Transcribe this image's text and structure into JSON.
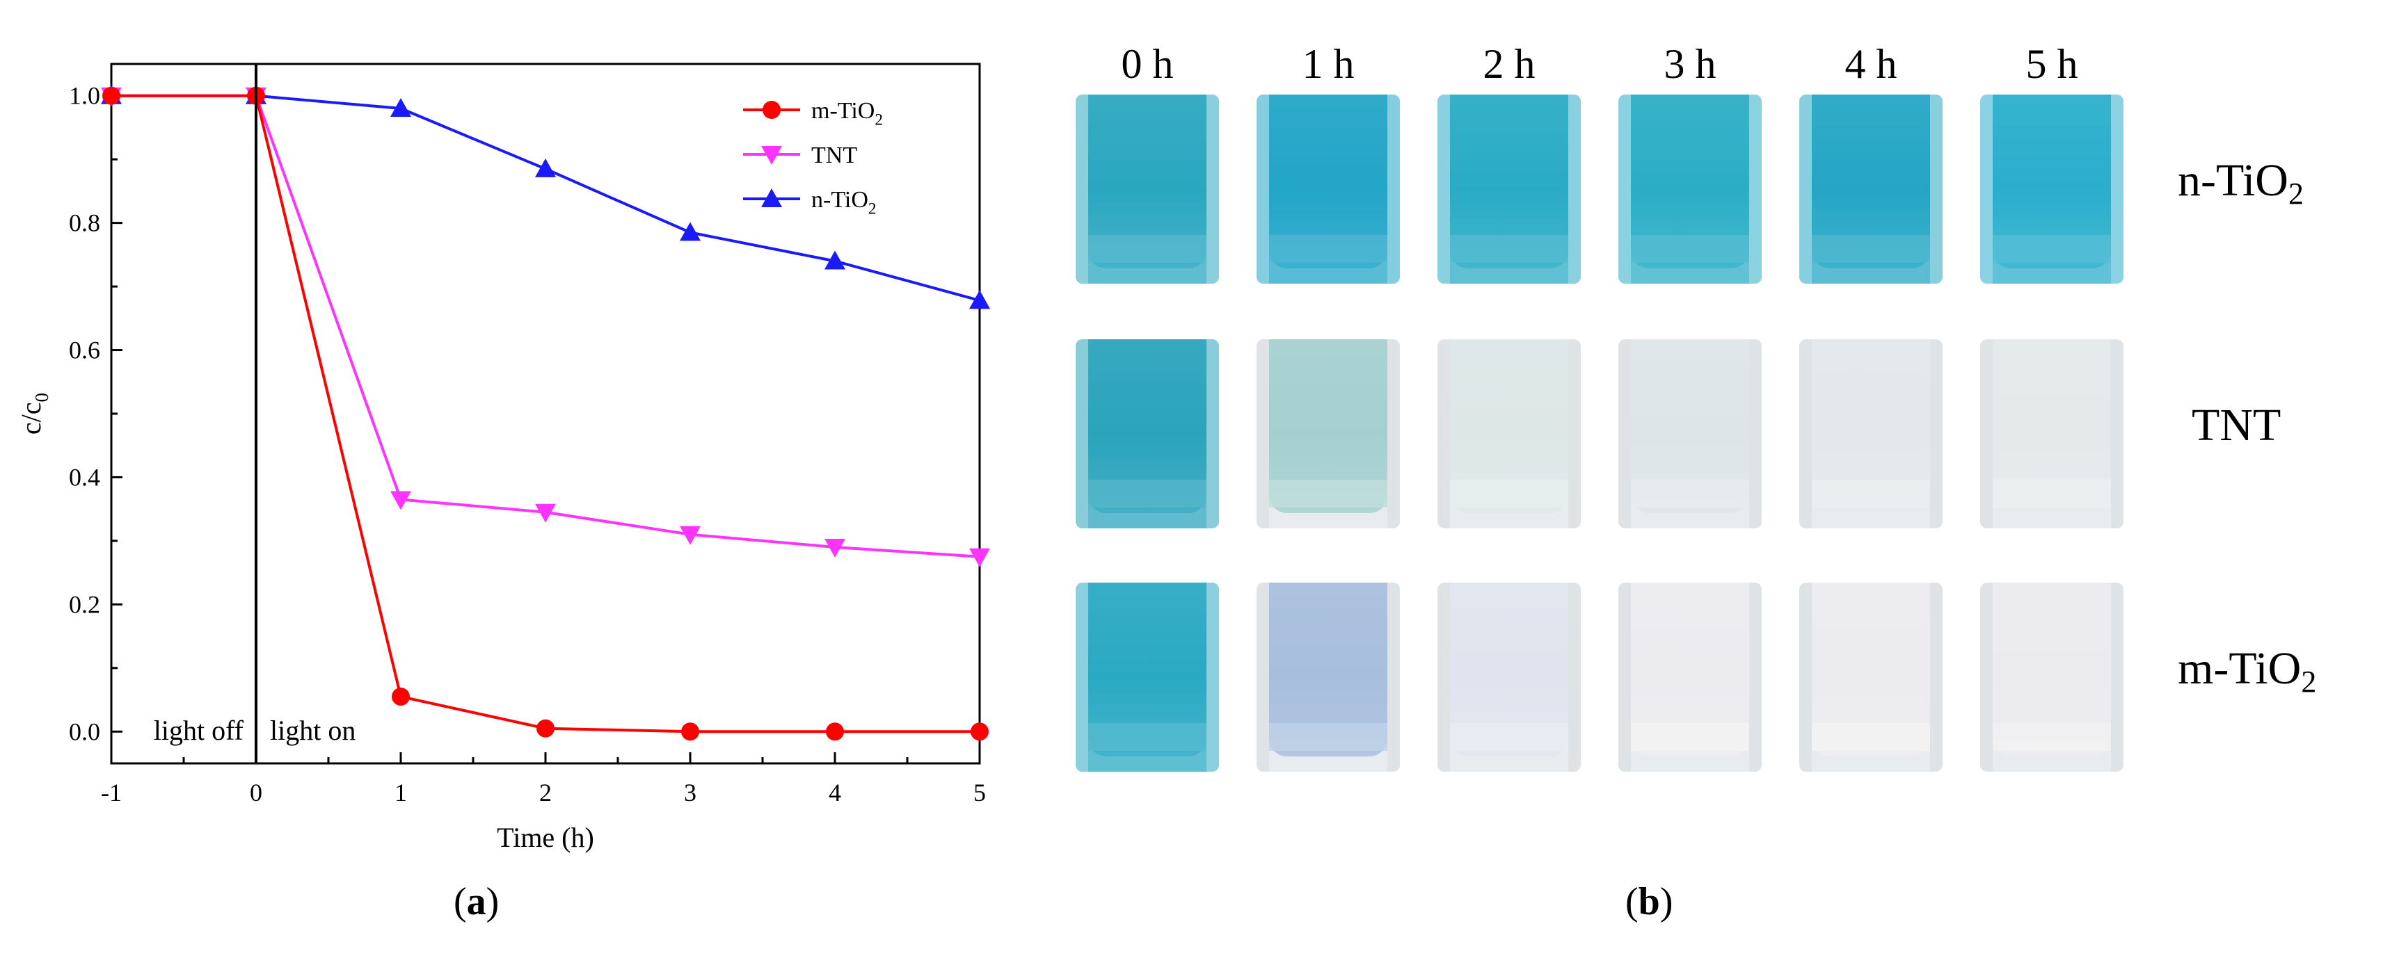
{
  "chart_data": {
    "type": "line",
    "xlabel": "Time (h)",
    "ylabel": "c/c",
    "ylabel_sub": "0",
    "xlim": [
      -1,
      5
    ],
    "ylim": [
      -0.05,
      1.05
    ],
    "xticks": [
      -1,
      0,
      1,
      2,
      3,
      4,
      5
    ],
    "yticks": [
      0.0,
      0.2,
      0.4,
      0.6,
      0.8,
      1.0
    ],
    "xtick_labels": [
      "-1",
      "0",
      "1",
      "2",
      "3",
      "4",
      "5"
    ],
    "ytick_labels": [
      "0.0",
      "0.2",
      "0.4",
      "0.6",
      "0.8",
      "1.0"
    ],
    "grid": false,
    "legend_position": "top-right",
    "vline_x": 0,
    "annotations": [
      "light off",
      "light on"
    ],
    "x": [
      -1,
      0,
      1,
      2,
      3,
      4,
      5
    ],
    "series": [
      {
        "name": "m-TiO",
        "name_sub": "2",
        "marker": "circle",
        "color": "#ff0000",
        "values": [
          1.0,
          1.0,
          0.055,
          0.005,
          0.0,
          0.0,
          0.0
        ]
      },
      {
        "name": "TNT",
        "name_sub": "",
        "marker": "triangle-down",
        "color": "#ff33ff",
        "values": [
          1.0,
          1.0,
          0.365,
          0.345,
          0.31,
          0.29,
          0.275
        ]
      },
      {
        "name": "n-TiO",
        "name_sub": "2",
        "marker": "triangle-up",
        "color": "#1a1aff",
        "values": [
          1.0,
          1.0,
          0.98,
          0.885,
          0.785,
          0.74,
          0.678
        ]
      }
    ]
  },
  "panels": {
    "a_label": "a",
    "b_label": "b",
    "paren_open": "(",
    "paren_close": ")"
  },
  "photos": {
    "time_labels": [
      "0 h",
      "1 h",
      "2 h",
      "3 h",
      "4 h",
      "5 h"
    ],
    "rows": [
      {
        "label": "n-TiO",
        "label_sub": "2",
        "liquid_colors": [
          "#2aa7c0",
          "#22a5c8",
          "#29abc6",
          "#2badc6",
          "#24a6c4",
          "#2aaecc"
        ]
      },
      {
        "label": "TNT",
        "label_sub": "",
        "liquid_colors": [
          "#2aa4bc",
          "#a5cfcf",
          "#dde7e6",
          "#dde5e8",
          "#e3e8ea",
          "#e4e9ea"
        ]
      },
      {
        "label": "m-TiO",
        "label_sub": "2",
        "liquid_colors": [
          "#2aa9c3",
          "#a7bedd",
          "#dfe4ee",
          "#ececef",
          "#ececee",
          "#ebebee"
        ]
      }
    ]
  }
}
